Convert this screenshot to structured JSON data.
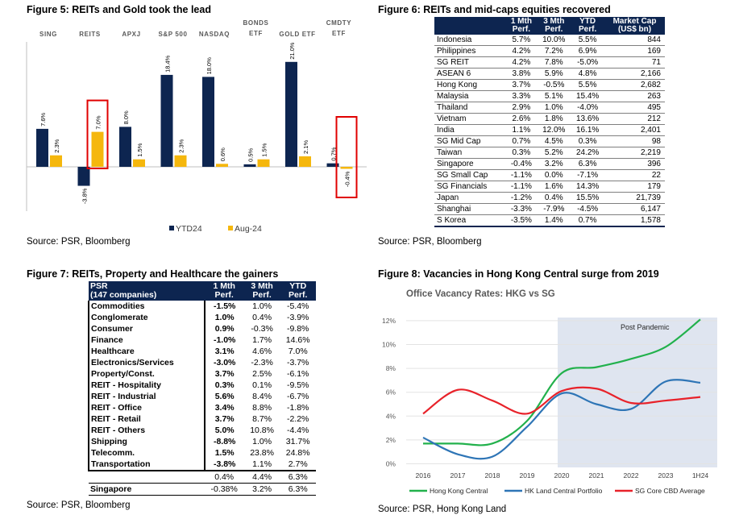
{
  "fig5": {
    "title": "Figure 5: REITs and Gold took the lead",
    "source": "Source: PSR, Bloomberg",
    "legend": [
      "YTD24",
      "Aug-24"
    ],
    "colors": {
      "ytd": "#0d2550",
      "aug": "#f5b70d",
      "highlight": "#e00000"
    },
    "chart_data": {
      "type": "bar",
      "categories": [
        "SING",
        "REITS",
        "APXJ",
        "S&P 500",
        "NASDAQ",
        "BONDS ETF",
        "GOLD ETF",
        "CMDTY ETF"
      ],
      "category_lines": [
        [
          "SING"
        ],
        [
          "REITS"
        ],
        [
          "APXJ"
        ],
        [
          "S&P 500"
        ],
        [
          "NASDAQ"
        ],
        [
          "BONDS",
          "ETF"
        ],
        [
          "GOLD ETF"
        ],
        [
          "CMDTY",
          "ETF"
        ]
      ],
      "series": [
        {
          "name": "YTD24",
          "values": [
            7.6,
            -3.8,
            8.0,
            18.4,
            18.0,
            0.5,
            21.0,
            0.7
          ],
          "labels": [
            "7.6%",
            "-3.8%",
            "8.0%",
            "18.4%",
            "18.0%",
            "0.5%",
            "21.0%",
            "0.7%"
          ]
        },
        {
          "name": "Aug-24",
          "values": [
            2.3,
            7.0,
            1.5,
            2.3,
            0.6,
            1.5,
            2.1,
            -0.4
          ],
          "labels": [
            "2.3%",
            "7.0%",
            "1.5%",
            "2.3%",
            "0.6%",
            "1.5%",
            "2.1%",
            "-0.4%"
          ]
        }
      ],
      "highlighted": [
        {
          "category": "REITS",
          "series": "Aug-24"
        },
        {
          "category": "CMDTY ETF",
          "series": "Aug-24"
        }
      ],
      "legend_position": "bottom"
    }
  },
  "fig6": {
    "title": "Figure 6: REITs and mid-caps equities recovered",
    "source": "Source: PSR, Bloomberg",
    "headers": [
      [
        "",
        ""
      ],
      [
        "1 Mth",
        "Perf."
      ],
      [
        "3 Mth",
        "Perf."
      ],
      [
        "YTD",
        "Perf."
      ],
      [
        "Market Cap",
        "(US$ bn)"
      ]
    ],
    "rows": [
      [
        "Indonesia",
        "5.7%",
        "10.0%",
        "5.5%",
        "844"
      ],
      [
        "Philippines",
        "4.2%",
        "7.2%",
        "6.9%",
        "169"
      ],
      [
        "SG REIT",
        "4.2%",
        "7.8%",
        "-5.0%",
        "71"
      ],
      [
        "ASEAN 6",
        "3.8%",
        "5.9%",
        "4.8%",
        "2,166"
      ],
      [
        "Hong Kong",
        "3.7%",
        "-0.5%",
        "5.5%",
        "2,682"
      ],
      [
        "Malaysia",
        "3.3%",
        "5.1%",
        "15.4%",
        "263"
      ],
      [
        "Thailand",
        "2.9%",
        "1.0%",
        "-4.0%",
        "495"
      ],
      [
        "Vietnam",
        "2.6%",
        "1.8%",
        "13.6%",
        "212"
      ],
      [
        "India",
        "1.1%",
        "12.0%",
        "16.1%",
        "2,401"
      ],
      [
        "SG Mid Cap",
        "0.7%",
        "4.5%",
        "0.3%",
        "98"
      ],
      [
        "Taiwan",
        "0.3%",
        "5.2%",
        "24.2%",
        "2,219"
      ],
      [
        "Singapore",
        "-0.4%",
        "3.2%",
        "6.3%",
        "396"
      ],
      [
        "SG Small Cap",
        "-1.1%",
        "0.0%",
        "-7.1%",
        "22"
      ],
      [
        "SG Financials",
        "-1.1%",
        "1.6%",
        "14.3%",
        "179"
      ],
      [
        "Japan",
        "-1.2%",
        "0.4%",
        "15.5%",
        "21,739"
      ],
      [
        "Shanghai",
        "-3.3%",
        "-7.9%",
        "-4.5%",
        "6,147"
      ],
      [
        "S Korea",
        "-3.5%",
        "1.4%",
        "0.7%",
        "1,578"
      ]
    ]
  },
  "fig7": {
    "title": "Figure 7: REITs, Property and Healthcare the gainers",
    "source": "Source: PSR, Bloomberg",
    "headers": [
      [
        "PSR",
        "(147 companies)"
      ],
      [
        "1 Mth",
        "Perf."
      ],
      [
        "3 Mth",
        "Perf."
      ],
      [
        "YTD",
        "Perf."
      ]
    ],
    "rows": [
      [
        "Commodities",
        "-1.5%",
        "1.0%",
        "-5.4%"
      ],
      [
        "Conglomerate",
        "1.0%",
        "0.4%",
        "-3.9%"
      ],
      [
        "Consumer",
        "0.9%",
        "-0.3%",
        "-9.8%"
      ],
      [
        "Finance",
        "-1.0%",
        "1.7%",
        "14.6%"
      ],
      [
        "Healthcare",
        "3.1%",
        "4.6%",
        "7.0%"
      ],
      [
        "Electronics/Services",
        "-3.0%",
        "-2.3%",
        "-3.7%"
      ],
      [
        "Property/Const.",
        "3.7%",
        "2.5%",
        "-6.1%"
      ],
      [
        "REIT - Hospitality",
        "0.3%",
        "0.1%",
        "-9.5%"
      ],
      [
        "REIT - Industrial",
        "5.6%",
        "8.4%",
        "-6.7%"
      ],
      [
        "REIT - Office",
        "3.4%",
        "8.8%",
        "-1.8%"
      ],
      [
        "REIT - Retail",
        "3.7%",
        "8.7%",
        "-2.2%"
      ],
      [
        "REIT - Others",
        "5.0%",
        "10.8%",
        "-4.4%"
      ],
      [
        "Shipping",
        "-8.8%",
        "1.0%",
        "31.7%"
      ],
      [
        "Telecomm.",
        "1.5%",
        "23.8%",
        "24.8%"
      ],
      [
        "Transportation",
        "-3.8%",
        "1.1%",
        "2.7%"
      ]
    ],
    "total_row": [
      "",
      "0.4%",
      "4.4%",
      "6.3%"
    ],
    "singapore_row": [
      "Singapore",
      "-0.38%",
      "3.2%",
      "6.3%"
    ]
  },
  "fig8": {
    "title": "Figure 8: Vacancies in Hong Kong Central surge from 2019",
    "source": "Source: PSR, Hong Kong Land",
    "chart_data": {
      "type": "line",
      "title": "Office Vacancy Rates: HKG vs SG",
      "categories": [
        "2016",
        "2017",
        "2018",
        "2019",
        "2020",
        "2021",
        "2022",
        "2023",
        "1H24"
      ],
      "y_ticks": [
        "0%",
        "2%",
        "4%",
        "6%",
        "8%",
        "10%",
        "12%"
      ],
      "ylim": [
        0,
        12
      ],
      "annotation": "Post Pandemic",
      "shaded_region": [
        "2020",
        "1H24"
      ],
      "series": [
        {
          "name": "Hong Kong Central",
          "color": "#22b14c",
          "values": [
            1.7,
            1.7,
            1.7,
            3.6,
            7.6,
            8.1,
            8.8,
            9.8,
            12.1
          ]
        },
        {
          "name": "HK Land Central Portfolio",
          "color": "#2e75b6",
          "values": [
            2.2,
            0.8,
            0.6,
            3.1,
            5.9,
            5.0,
            4.6,
            6.9,
            6.8
          ]
        },
        {
          "name": "SG Core CBD Average",
          "color": "#e8222a",
          "values": [
            4.2,
            6.2,
            5.3,
            4.2,
            6.1,
            6.3,
            5.1,
            5.3,
            5.6
          ]
        }
      ],
      "legend_position": "bottom"
    }
  }
}
